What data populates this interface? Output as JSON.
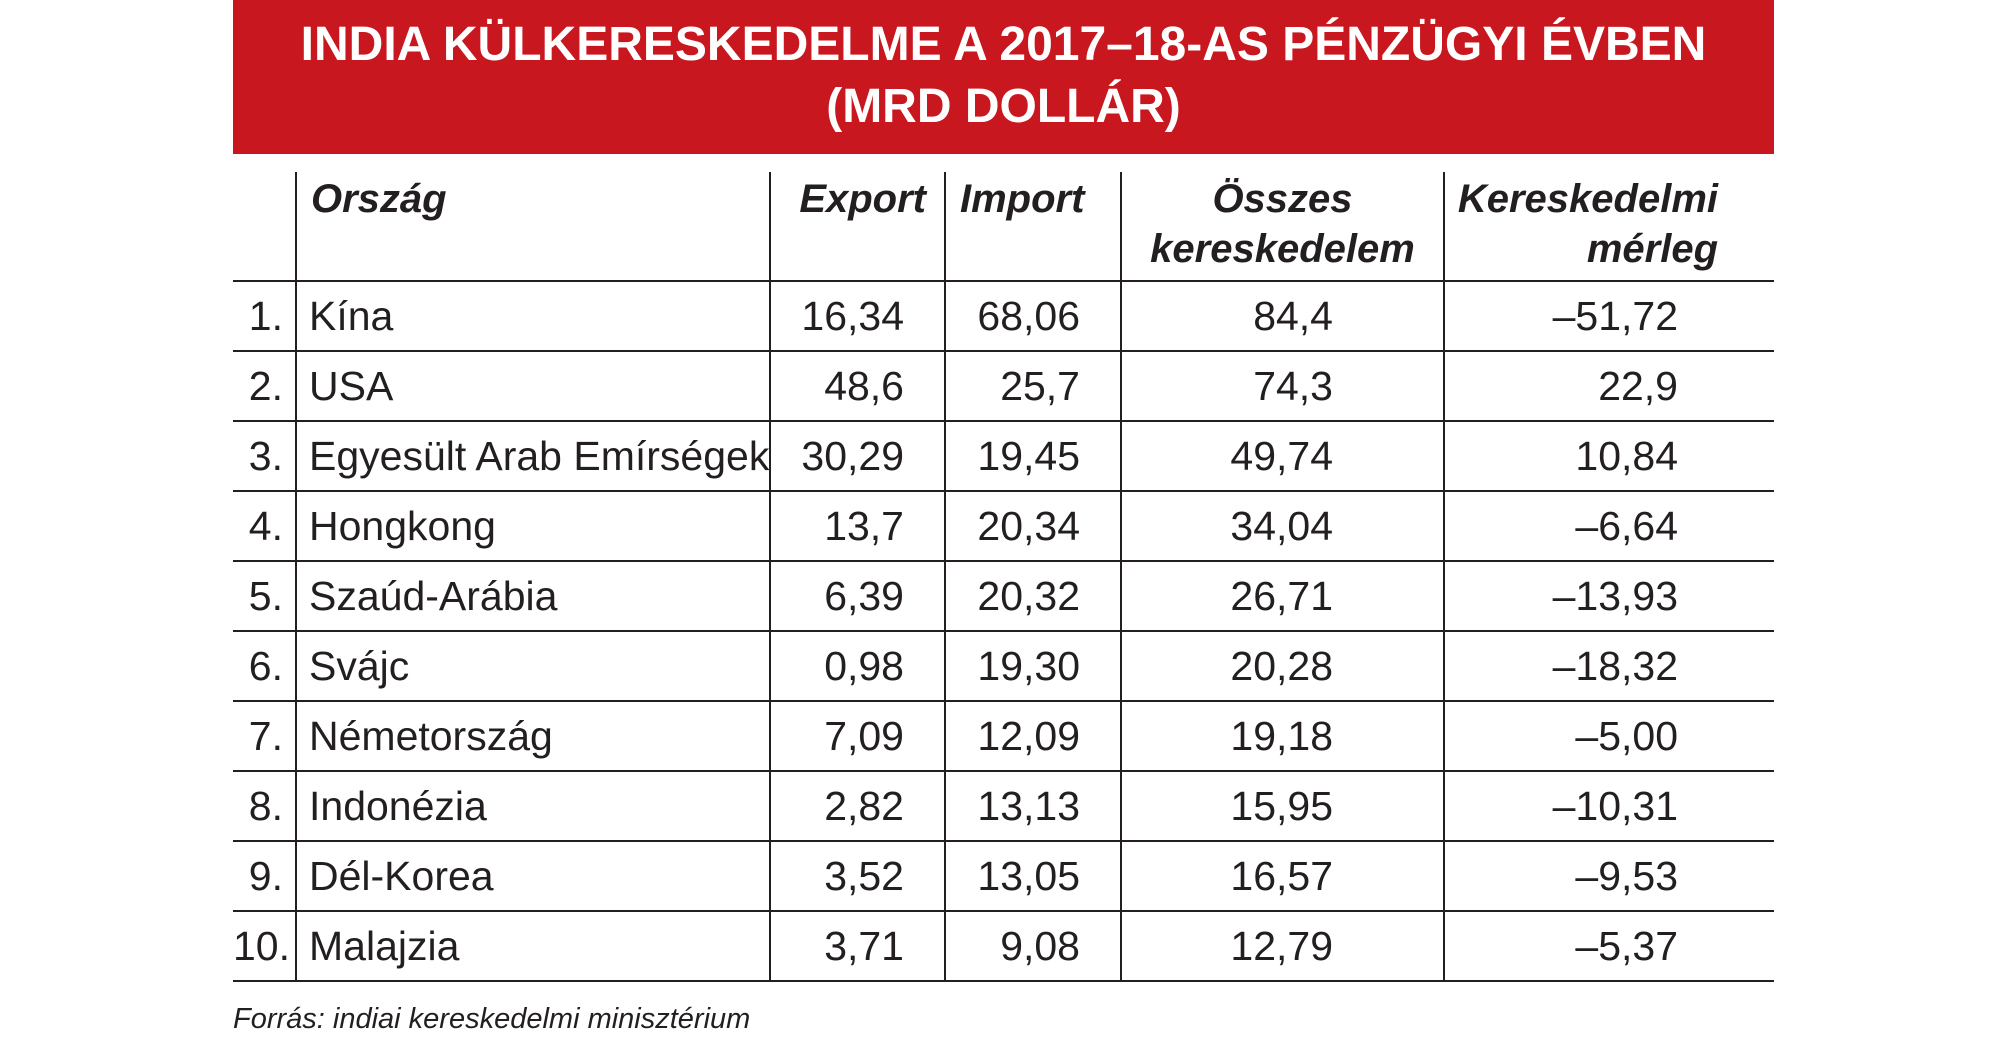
{
  "title": {
    "line1": "INDIA KÜLKERESKEDELME A 2017–18-AS PÉNZÜGYI ÉVBEN",
    "line2": "(MRD DOLLÁR)"
  },
  "table": {
    "headers": {
      "country": "Ország",
      "export": "Export",
      "import": "Import",
      "total_line1": "Összes",
      "total_line2": "kereskedelem",
      "balance_line1": "Kereskedelmi",
      "balance_line2": "mérleg"
    },
    "rows": [
      {
        "rank": "1.",
        "country": "Kína",
        "export": "16,34",
        "import": "68,06",
        "total": "84,4",
        "balance": "–51,72"
      },
      {
        "rank": "2.",
        "country": "USA",
        "export": "48,6",
        "import": "25,7",
        "total": "74,3",
        "balance": "22,9"
      },
      {
        "rank": "3.",
        "country": "Egyesült Arab Emírségek",
        "export": "30,29",
        "import": "19,45",
        "total": "49,74",
        "balance": "10,84"
      },
      {
        "rank": "4.",
        "country": "Hongkong",
        "export": "13,7",
        "import": "20,34",
        "total": "34,04",
        "balance": "–6,64"
      },
      {
        "rank": "5.",
        "country": "Szaúd-Arábia",
        "export": "6,39",
        "import": "20,32",
        "total": "26,71",
        "balance": "–13,93"
      },
      {
        "rank": "6.",
        "country": "Svájc",
        "export": "0,98",
        "import": "19,30",
        "total": "20,28",
        "balance": "–18,32"
      },
      {
        "rank": "7.",
        "country": "Németország",
        "export": "7,09",
        "import": "12,09",
        "total": "19,18",
        "balance": "–5,00"
      },
      {
        "rank": "8.",
        "country": "Indonézia",
        "export": "2,82",
        "import": "13,13",
        "total": "15,95",
        "balance": "–10,31"
      },
      {
        "rank": "9.",
        "country": "Dél-Korea",
        "export": "3,52",
        "import": "13,05",
        "total": "16,57",
        "balance": "–9,53"
      },
      {
        "rank": "10.",
        "country": "Malajzia",
        "export": "3,71",
        "import": "9,08",
        "total": "12,79",
        "balance": "–5,37"
      }
    ]
  },
  "source": "Forrás: indiai kereskedelmi minisztérium",
  "colors": {
    "banner": "#c8171e",
    "text": "#231f20",
    "background": "#ffffff"
  }
}
